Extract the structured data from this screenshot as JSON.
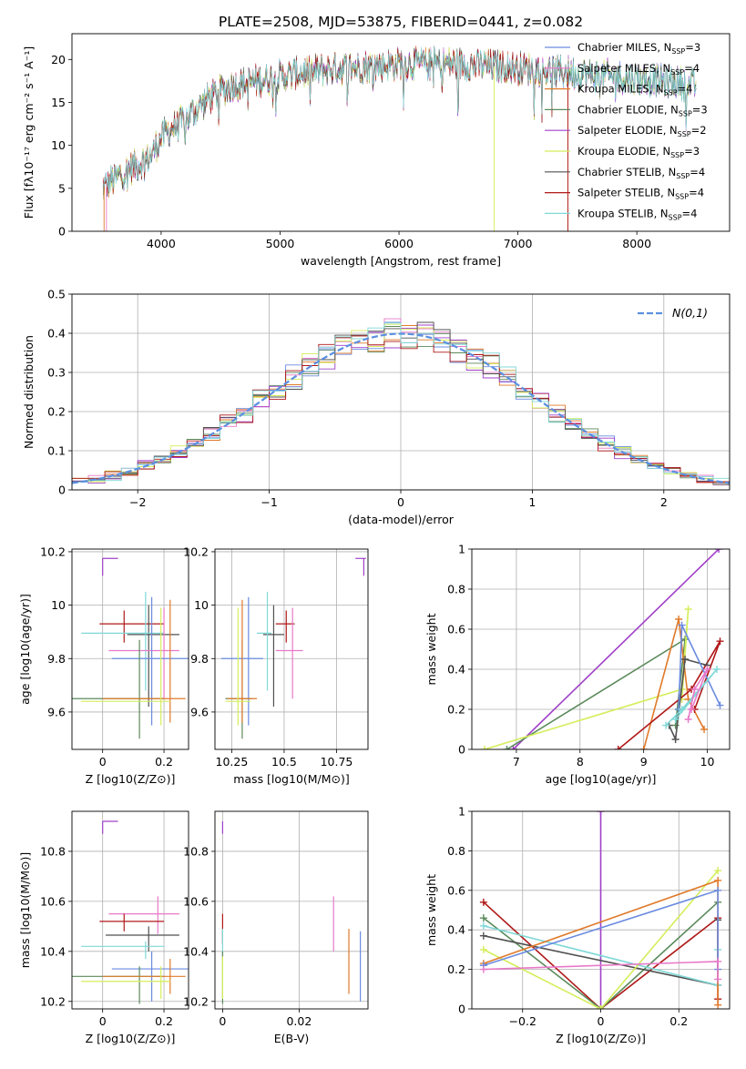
{
  "title": "PLATE=2508, MJD=53875, FIBERID=0441, z=0.082",
  "colors": {
    "chabrier_miles": "#6a8be0",
    "salpeter_miles": "#e879c8",
    "kroupa_miles": "#e07a2a",
    "chabrier_elodie": "#5b8a5b",
    "salpeter_elodie": "#a040c8",
    "kroupa_elodie": "#d4ee5a",
    "chabrier_stelib": "#505050",
    "salpeter_stelib": "#b01818",
    "kroupa_stelib": "#80d8d8",
    "normal": "#5b8fe0"
  },
  "chart_data": [
    {
      "id": "spectrum",
      "type": "line",
      "xlabel": "wavelength [Angstrom, rest frame]",
      "ylabel": "Flux [fλ10⁻¹⁷ erg cm⁻² s⁻¹ A⁻¹]",
      "xlim": [
        3250,
        8780
      ],
      "ylim": [
        0,
        23
      ],
      "xticks": [
        4000,
        5000,
        6000,
        7000,
        8000
      ],
      "yticks": [
        0,
        5,
        10,
        15,
        20
      ],
      "grid": false,
      "legend_position": "top-right",
      "legend": [
        {
          "label": "Chabrier MILES, N_SSP=3",
          "color_key": "chabrier_miles"
        },
        {
          "label": "Salpeter MILES, N_SSP=4",
          "color_key": "salpeter_miles"
        },
        {
          "label": "Kroupa MILES, N_SSP=4",
          "color_key": "kroupa_miles"
        },
        {
          "label": "Chabrier ELODIE, N_SSP=3",
          "color_key": "chabrier_elodie"
        },
        {
          "label": "Salpeter ELODIE, N_SSP=2",
          "color_key": "salpeter_elodie"
        },
        {
          "label": "Kroupa ELODIE, N_SSP=3",
          "color_key": "kroupa_elodie"
        },
        {
          "label": "Chabrier STELIB, N_SSP=4",
          "color_key": "chabrier_stelib"
        },
        {
          "label": "Salpeter STELIB, N_SSP=4",
          "color_key": "salpeter_stelib"
        },
        {
          "label": "Kroupa STELIB, N_SSP=4",
          "color_key": "kroupa_stelib"
        }
      ],
      "continuum": [
        [
          3500,
          5
        ],
        [
          3700,
          7
        ],
        [
          3900,
          8.5
        ],
        [
          4000,
          11
        ],
        [
          4200,
          13
        ],
        [
          4400,
          15.5
        ],
        [
          4600,
          17
        ],
        [
          4800,
          17.5
        ],
        [
          5000,
          18
        ],
        [
          5200,
          18.5
        ],
        [
          5500,
          19
        ],
        [
          6000,
          19.5
        ],
        [
          6500,
          19.5
        ],
        [
          7000,
          19
        ],
        [
          7400,
          18.5
        ],
        [
          7800,
          18
        ],
        [
          8200,
          17.5
        ],
        [
          8500,
          17
        ]
      ]
    },
    {
      "id": "residuals",
      "type": "histogram",
      "xlabel": "(data-model)/error",
      "ylabel": "Normed distribution",
      "xlim": [
        -2.5,
        2.5
      ],
      "ylim": [
        0,
        0.5
      ],
      "xticks": [
        -2,
        -1,
        0,
        1,
        2
      ],
      "yticks": [
        0.0,
        0.1,
        0.2,
        0.3,
        0.4,
        0.5
      ],
      "grid": true,
      "legend_position": "top-right",
      "legend_label": "N(0,1)",
      "bins": 40
    },
    {
      "id": "age_vs_z",
      "type": "scatter",
      "xlabel": "Z [log10(Z/Z⊙)]",
      "ylabel": "age  [log10(age/yr)]",
      "xlim": [
        -0.1,
        0.28
      ],
      "ylim": [
        9.46,
        10.21
      ],
      "xticks": [
        0.0,
        0.2
      ],
      "yticks": [
        9.6,
        9.8,
        10.0,
        10.2
      ],
      "grid": true,
      "points": [
        {
          "k": "salpeter_elodie",
          "x": 0.0,
          "y": 10.175,
          "xe": [
            0.0,
            0.05
          ],
          "ye": [
            10.11,
            10.175
          ]
        },
        {
          "k": "salpeter_stelib",
          "x": 0.07,
          "y": 9.93,
          "xe": [
            -0.01,
            0.2
          ],
          "ye": [
            9.86,
            9.98
          ]
        },
        {
          "k": "chabrier_stelib",
          "x": 0.15,
          "y": 9.89,
          "xe": [
            0.08,
            0.25
          ],
          "ye": [
            9.62,
            10.0
          ]
        },
        {
          "k": "kroupa_stelib",
          "x": 0.14,
          "y": 9.895,
          "xe": [
            -0.07,
            0.2
          ],
          "ye": [
            9.68,
            10.05
          ]
        },
        {
          "k": "salpeter_miles",
          "x": 0.2,
          "y": 9.83,
          "xe": [
            0.02,
            0.25
          ],
          "ye": [
            9.65,
            9.99
          ]
        },
        {
          "k": "chabrier_miles",
          "x": 0.16,
          "y": 9.8,
          "xe": [
            0.03,
            0.28
          ],
          "ye": [
            9.55,
            10.03
          ]
        },
        {
          "k": "chabrier_elodie",
          "x": 0.12,
          "y": 9.65,
          "xe": [
            -0.1,
            0.2
          ],
          "ye": [
            9.5,
            9.87
          ]
        },
        {
          "k": "kroupa_miles",
          "x": 0.22,
          "y": 9.65,
          "xe": [
            0.0,
            0.27
          ],
          "ye": [
            9.56,
            10.02
          ]
        },
        {
          "k": "kroupa_elodie",
          "x": 0.19,
          "y": 9.64,
          "xe": [
            -0.07,
            0.22
          ],
          "ye": [
            9.55,
            9.99
          ]
        }
      ]
    },
    {
      "id": "age_vs_mass",
      "type": "scatter",
      "xlabel": "mass [log10(M/M⊙)]",
      "ylabel": "",
      "xlim": [
        10.17,
        10.9
      ],
      "ylim": [
        9.46,
        10.21
      ],
      "xticks": [
        10.25,
        10.5,
        10.75
      ],
      "yticks": [
        9.6,
        9.8,
        10.0,
        10.2
      ],
      "grid": true,
      "points": [
        {
          "k": "salpeter_elodie",
          "x": 10.88,
          "y": 10.175,
          "xe": [
            10.84,
            10.89
          ],
          "ye": [
            10.11,
            10.175
          ]
        },
        {
          "k": "salpeter_stelib",
          "x": 10.51,
          "y": 9.93,
          "xe": [
            10.46,
            10.55
          ],
          "ye": [
            9.86,
            9.98
          ]
        },
        {
          "k": "chabrier_stelib",
          "x": 10.45,
          "y": 9.89,
          "xe": [
            10.4,
            10.5
          ],
          "ye": [
            9.62,
            10.0
          ]
        },
        {
          "k": "kroupa_stelib",
          "x": 10.42,
          "y": 9.895,
          "xe": [
            10.37,
            10.44
          ],
          "ye": [
            9.68,
            10.05
          ]
        },
        {
          "k": "salpeter_miles",
          "x": 10.54,
          "y": 9.83,
          "xe": [
            10.46,
            10.59
          ],
          "ye": [
            9.65,
            9.99
          ]
        },
        {
          "k": "chabrier_miles",
          "x": 10.33,
          "y": 9.8,
          "xe": [
            10.2,
            10.4
          ],
          "ye": [
            9.55,
            10.03
          ]
        },
        {
          "k": "chabrier_elodie",
          "x": 10.3,
          "y": 9.65,
          "xe": [
            10.22,
            10.35
          ],
          "ye": [
            9.5,
            9.87
          ]
        },
        {
          "k": "kroupa_miles",
          "x": 10.3,
          "y": 9.65,
          "xe": [
            10.23,
            10.37
          ],
          "ye": [
            9.56,
            10.02
          ]
        },
        {
          "k": "kroupa_elodie",
          "x": 10.28,
          "y": 9.64,
          "xe": [
            10.22,
            10.34
          ],
          "ye": [
            9.55,
            9.99
          ]
        }
      ]
    },
    {
      "id": "weight_vs_age",
      "type": "line",
      "xlabel": "age  [log10(age/yr)]",
      "ylabel": "mass weight",
      "xlim": [
        6.3,
        10.35
      ],
      "ylim": [
        0,
        1
      ],
      "xticks": [
        7,
        8,
        9,
        10
      ],
      "yticks": [
        0.0,
        0.2,
        0.4,
        0.6,
        0.8,
        1.0
      ],
      "grid": true,
      "series": [
        {
          "k": "salpeter_elodie",
          "pts": [
            [
              6.95,
              0.0
            ],
            [
              10.18,
              1.0
            ]
          ]
        },
        {
          "k": "chabrier_elodie",
          "pts": [
            [
              6.85,
              0.0
            ],
            [
              9.65,
              0.55
            ],
            [
              9.5,
              0.12
            ],
            [
              9.55,
              0.2
            ]
          ]
        },
        {
          "k": "kroupa_elodie",
          "pts": [
            [
              6.5,
              0.0
            ],
            [
              9.6,
              0.3
            ],
            [
              9.7,
              0.7
            ],
            [
              9.6,
              0.25
            ]
          ]
        },
        {
          "k": "kroupa_miles",
          "pts": [
            [
              9.0,
              0.0
            ],
            [
              9.55,
              0.65
            ],
            [
              9.7,
              0.25
            ],
            [
              9.95,
              0.1
            ]
          ]
        },
        {
          "k": "salpeter_stelib",
          "pts": [
            [
              8.6,
              0.0
            ],
            [
              9.75,
              0.3
            ],
            [
              10.2,
              0.54
            ],
            [
              9.8,
              0.2
            ]
          ]
        },
        {
          "k": "chabrier_stelib",
          "pts": [
            [
              9.4,
              0.12
            ],
            [
              9.5,
              0.05
            ],
            [
              9.65,
              0.45
            ],
            [
              10.0,
              0.42
            ]
          ]
        },
        {
          "k": "chabrier_miles",
          "pts": [
            [
              9.55,
              0.2
            ],
            [
              9.6,
              0.62
            ],
            [
              10.2,
              0.22
            ]
          ]
        },
        {
          "k": "kroupa_stelib",
          "pts": [
            [
              9.35,
              0.12
            ],
            [
              9.6,
              0.2
            ],
            [
              10.15,
              0.4
            ],
            [
              9.5,
              0.15
            ]
          ]
        },
        {
          "k": "salpeter_miles",
          "pts": [
            [
              9.7,
              0.15
            ],
            [
              9.8,
              0.3
            ],
            [
              10.0,
              0.4
            ],
            [
              9.75,
              0.2
            ]
          ]
        }
      ]
    },
    {
      "id": "mass_vs_z",
      "type": "scatter",
      "xlabel": "Z [log10(Z/Z⊙)]",
      "ylabel": "mass [log10(M/M⊙)]",
      "xlim": [
        -0.1,
        0.28
      ],
      "ylim": [
        10.17,
        10.96
      ],
      "xticks": [
        0.0,
        0.2
      ],
      "yticks": [
        10.2,
        10.4,
        10.6,
        10.8
      ],
      "grid": true,
      "points": [
        {
          "k": "salpeter_elodie",
          "x": 0.0,
          "y": 10.92,
          "xe": [
            0.0,
            0.05
          ],
          "ye": [
            10.87,
            10.92
          ]
        },
        {
          "k": "salpeter_miles",
          "x": 0.18,
          "y": 10.55,
          "xe": [
            0.02,
            0.25
          ],
          "ye": [
            10.47,
            10.62
          ]
        },
        {
          "k": "salpeter_stelib",
          "x": 0.07,
          "y": 10.52,
          "xe": [
            -0.01,
            0.2
          ],
          "ye": [
            10.48,
            10.55
          ]
        },
        {
          "k": "chabrier_stelib",
          "x": 0.15,
          "y": 10.465,
          "xe": [
            0.01,
            0.25
          ],
          "ye": [
            10.4,
            10.5
          ]
        },
        {
          "k": "kroupa_stelib",
          "x": 0.14,
          "y": 10.42,
          "xe": [
            -0.07,
            0.2
          ],
          "ye": [
            10.37,
            10.44
          ]
        },
        {
          "k": "chabrier_miles",
          "x": 0.16,
          "y": 10.33,
          "xe": [
            0.03,
            0.28
          ],
          "ye": [
            10.2,
            10.4
          ]
        },
        {
          "k": "chabrier_elodie",
          "x": 0.12,
          "y": 10.3,
          "xe": [
            -0.1,
            0.2
          ],
          "ye": [
            10.19,
            10.34
          ]
        },
        {
          "k": "kroupa_miles",
          "x": 0.22,
          "y": 10.3,
          "xe": [
            0.0,
            0.27
          ],
          "ye": [
            10.23,
            10.37
          ]
        },
        {
          "k": "kroupa_elodie",
          "x": 0.19,
          "y": 10.28,
          "xe": [
            -0.07,
            0.22
          ],
          "ye": [
            10.21,
            10.34
          ]
        }
      ]
    },
    {
      "id": "mass_vs_ebv",
      "type": "scatter",
      "xlabel": "E(B-V)",
      "ylabel": "",
      "xlim": [
        -0.002,
        0.038
      ],
      "ylim": [
        10.17,
        10.96
      ],
      "xticks": [
        0.0,
        0.02
      ],
      "yticks": [
        10.2,
        10.4,
        10.6,
        10.8
      ],
      "grid": true,
      "points": [
        {
          "k": "salpeter_elodie",
          "x": 0.0,
          "y": 10.9,
          "xe": [
            0.0,
            0.0
          ],
          "ye": [
            10.87,
            10.92
          ]
        },
        {
          "k": "salpeter_stelib",
          "x": 0.0,
          "y": 10.5,
          "xe": [
            0.0,
            0.0
          ],
          "ye": [
            10.43,
            10.55
          ]
        },
        {
          "k": "kroupa_stelib",
          "x": 0.0,
          "y": 10.42,
          "xe": [
            0.0,
            0.0
          ],
          "ye": [
            10.37,
            10.49
          ]
        },
        {
          "k": "chabrier_elodie",
          "x": 0.0,
          "y": 10.3,
          "xe": [
            0.0,
            0.0
          ],
          "ye": [
            10.19,
            10.4
          ]
        },
        {
          "k": "kroupa_elodie",
          "x": 0.0,
          "y": 10.3,
          "xe": [
            0.0,
            0.0
          ],
          "ye": [
            10.21,
            10.38
          ]
        },
        {
          "k": "salpeter_miles",
          "x": 0.029,
          "y": 10.5,
          "xe": [
            0.029,
            0.029
          ],
          "ye": [
            10.4,
            10.62
          ]
        },
        {
          "k": "kroupa_miles",
          "x": 0.033,
          "y": 10.35,
          "xe": [
            0.033,
            0.033
          ],
          "ye": [
            10.23,
            10.49
          ]
        },
        {
          "k": "chabrier_miles",
          "x": 0.036,
          "y": 10.33,
          "xe": [
            0.036,
            0.036
          ],
          "ye": [
            10.2,
            10.48
          ]
        }
      ]
    },
    {
      "id": "weight_vs_z",
      "type": "line",
      "xlabel": "Z [log10(Z/Z⊙)]",
      "ylabel": "mass weight",
      "xlim": [
        -0.33,
        0.33
      ],
      "ylim": [
        0,
        1
      ],
      "xticks": [
        -0.2,
        0.0,
        0.2
      ],
      "yticks": [
        0.0,
        0.2,
        0.4,
        0.6,
        0.8,
        1.0
      ],
      "grid": true,
      "series": [
        {
          "k": "salpeter_elodie",
          "pts": [
            [
              0.0,
              0.0
            ],
            [
              0.0,
              1.0
            ]
          ]
        },
        {
          "k": "salpeter_stelib",
          "pts": [
            [
              -0.3,
              0.54
            ],
            [
              0.0,
              0.0
            ],
            [
              0.3,
              0.46
            ],
            [
              0.3,
              0.05
            ]
          ]
        },
        {
          "k": "chabrier_elodie",
          "pts": [
            [
              -0.3,
              0.46
            ],
            [
              0.0,
              0.0
            ],
            [
              0.3,
              0.54
            ]
          ]
        },
        {
          "k": "chabrier_stelib",
          "pts": [
            [
              -0.3,
              0.37
            ],
            [
              0.3,
              0.12
            ],
            [
              0.3,
              0.45
            ]
          ]
        },
        {
          "k": "kroupa_stelib",
          "pts": [
            [
              -0.3,
              0.42
            ],
            [
              0.3,
              0.12
            ],
            [
              0.3,
              0.3
            ]
          ]
        },
        {
          "k": "kroupa_elodie",
          "pts": [
            [
              -0.3,
              0.3
            ],
            [
              0.0,
              0.0
            ],
            [
              0.3,
              0.7
            ]
          ]
        },
        {
          "k": "kroupa_miles",
          "pts": [
            [
              -0.3,
              0.23
            ],
            [
              0.3,
              0.65
            ],
            [
              0.3,
              0.02
            ]
          ]
        },
        {
          "k": "chabrier_miles",
          "pts": [
            [
              -0.3,
              0.22
            ],
            [
              0.3,
              0.6
            ],
            [
              0.3,
              0.2
            ]
          ]
        },
        {
          "k": "salpeter_miles",
          "pts": [
            [
              -0.3,
              0.2
            ],
            [
              0.3,
              0.24
            ],
            [
              0.3,
              0.15
            ]
          ]
        }
      ]
    }
  ]
}
